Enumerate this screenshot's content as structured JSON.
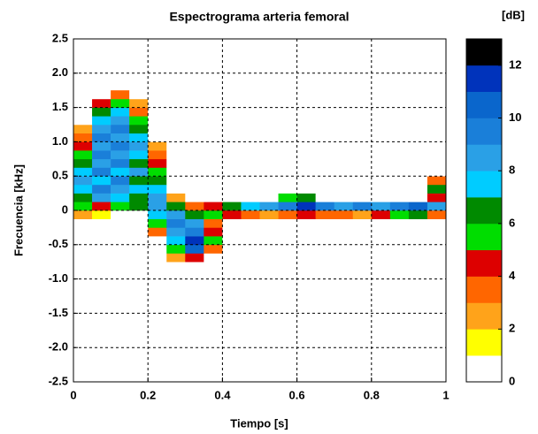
{
  "chart_data": {
    "type": "heatmap",
    "title": "Espectrograma arteria femoral",
    "x_label": "Tiempo [s]",
    "y_label": "Frecuencia [kHz]",
    "xlim": [
      0,
      1
    ],
    "xticks": [
      0,
      0.2,
      0.4,
      0.6,
      0.8,
      1
    ],
    "ylim": [
      -2.5,
      2.5
    ],
    "yticks": [
      -2.5,
      {
        "value": -2,
        "label": "-2.0"
      },
      -1.5,
      {
        "value": -1,
        "label": "-1.0"
      },
      -0.5,
      0,
      0.5,
      {
        "value": 1,
        "label": "1.0"
      },
      1.5,
      {
        "value": 2,
        "label": "2.0"
      },
      2.5
    ],
    "grid": true,
    "x_bins": [
      0,
      0.05,
      0.1,
      0.15,
      0.2,
      0.25,
      0.3,
      0.35,
      0.4,
      0.45,
      0.5,
      0.55,
      0.6,
      0.65,
      0.7,
      0.75,
      0.8,
      0.85,
      0.9,
      0.95,
      1
    ],
    "y_bins": [
      -0.75,
      -0.625,
      -0.5,
      -0.375,
      -0.25,
      -0.125,
      0,
      0.125,
      0.25,
      0.375,
      0.5,
      0.625,
      0.75,
      0.875,
      1,
      1.125,
      1.25,
      1.375,
      1.5,
      1.625,
      1.75
    ],
    "z": [
      [
        0,
        0,
        0,
        0,
        0,
        2,
        4,
        0,
        0,
        0,
        0,
        0,
        0,
        0,
        0,
        0,
        0,
        0,
        0,
        0
      ],
      [
        0,
        0,
        0,
        0,
        0,
        5,
        10,
        3,
        0,
        0,
        0,
        0,
        0,
        0,
        0,
        0,
        0,
        0,
        0,
        0
      ],
      [
        0,
        0,
        0,
        0,
        0,
        7,
        11,
        5,
        0,
        0,
        0,
        0,
        0,
        0,
        0,
        0,
        0,
        0,
        0,
        0
      ],
      [
        0,
        0,
        0,
        0,
        3,
        8,
        9,
        4,
        0,
        0,
        0,
        0,
        0,
        0,
        0,
        0,
        0,
        0,
        0,
        0
      ],
      [
        0,
        0,
        0,
        0,
        5,
        9,
        8,
        3,
        0,
        0,
        0,
        0,
        0,
        0,
        0,
        0,
        0,
        0,
        0,
        0
      ],
      [
        2,
        1,
        0,
        0,
        7,
        8,
        6,
        5,
        4,
        3,
        2,
        3,
        4,
        3,
        3,
        2,
        4,
        5,
        6,
        3
      ],
      [
        5,
        4,
        5,
        6,
        8,
        6,
        3,
        4,
        6,
        7,
        8,
        9,
        11,
        9,
        8,
        9,
        8,
        9,
        10,
        8
      ],
      [
        6,
        8,
        7,
        6,
        8,
        2,
        0,
        0,
        0,
        0,
        0,
        5,
        6,
        0,
        0,
        0,
        0,
        0,
        0,
        4
      ],
      [
        7,
        9,
        8,
        7,
        7,
        0,
        0,
        0,
        0,
        0,
        0,
        0,
        0,
        0,
        0,
        0,
        0,
        0,
        0,
        6
      ],
      [
        8,
        7,
        9,
        6,
        6,
        0,
        0,
        0,
        0,
        0,
        0,
        0,
        0,
        0,
        0,
        0,
        0,
        0,
        0,
        3
      ],
      [
        7,
        9,
        7,
        8,
        5,
        0,
        0,
        0,
        0,
        0,
        0,
        0,
        0,
        0,
        0,
        0,
        0,
        0,
        0,
        0
      ],
      [
        6,
        8,
        9,
        6,
        4,
        0,
        0,
        0,
        0,
        0,
        0,
        0,
        0,
        0,
        0,
        0,
        0,
        0,
        0,
        0
      ],
      [
        5,
        9,
        8,
        7,
        3,
        0,
        0,
        0,
        0,
        0,
        0,
        0,
        0,
        0,
        0,
        0,
        0,
        0,
        0,
        0
      ],
      [
        4,
        8,
        9,
        8,
        2,
        0,
        0,
        0,
        0,
        0,
        0,
        0,
        0,
        0,
        0,
        0,
        0,
        0,
        0,
        0
      ],
      [
        3,
        9,
        8,
        7,
        0,
        0,
        0,
        0,
        0,
        0,
        0,
        0,
        0,
        0,
        0,
        0,
        0,
        0,
        0,
        0
      ],
      [
        2,
        8,
        9,
        6,
        0,
        0,
        0,
        0,
        0,
        0,
        0,
        0,
        0,
        0,
        0,
        0,
        0,
        0,
        0,
        0
      ],
      [
        0,
        7,
        8,
        5,
        0,
        0,
        0,
        0,
        0,
        0,
        0,
        0,
        0,
        0,
        0,
        0,
        0,
        0,
        0,
        0
      ],
      [
        0,
        6,
        7,
        3,
        0,
        0,
        0,
        0,
        0,
        0,
        0,
        0,
        0,
        0,
        0,
        0,
        0,
        0,
        0,
        0
      ],
      [
        0,
        4,
        5,
        2,
        0,
        0,
        0,
        0,
        0,
        0,
        0,
        0,
        0,
        0,
        0,
        0,
        0,
        0,
        0,
        0
      ],
      [
        0,
        0,
        3,
        0,
        0,
        0,
        0,
        0,
        0,
        0,
        0,
        0,
        0,
        0,
        0,
        0,
        0,
        0,
        0,
        0
      ]
    ],
    "colorbar": {
      "label": "[dB]",
      "lim": [
        0,
        13
      ],
      "ticks": [
        0,
        2,
        4,
        6,
        8,
        10,
        12
      ],
      "colors": [
        "#ffffff",
        "#ffff00",
        "#ffa31a",
        "#ff6600",
        "#dd0000",
        "#00dd00",
        "#008a00",
        "#00ccff",
        "#2aa0e6",
        "#1a7fd9",
        "#0a66cc",
        "#0033bb",
        "#000000"
      ]
    }
  }
}
